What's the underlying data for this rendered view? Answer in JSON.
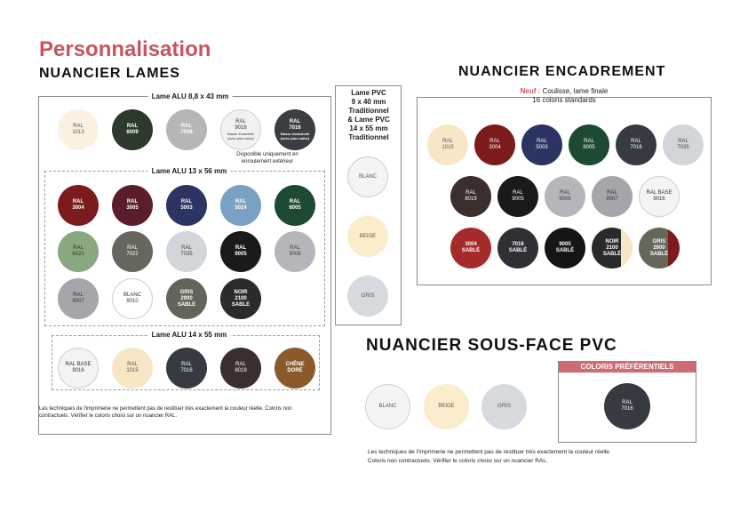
{
  "title": "Personnalisation",
  "lames": {
    "heading": "NUANCIER LAMES",
    "group1": {
      "label": "Lame ALU 8,8 x 43 mm",
      "swatches": [
        {
          "l1": "RAL",
          "l2": "1013",
          "bg": "#fbf1e0",
          "fg": "#555",
          "b": false
        },
        {
          "l1": "RAL",
          "l2": "6009",
          "bg": "#2c3a2b",
          "fg": "#fff",
          "b": true
        },
        {
          "l1": "RAL",
          "l2": "7038",
          "bg": "#b5b7b5",
          "fg": "#fff",
          "b": true
        },
        {
          "l1": "RAL",
          "l2": "9016",
          "l3": "Basse émissivité (avec plus value)",
          "bg": "#f1f1f1",
          "fg": "#333",
          "b": false
        },
        {
          "l1": "RAL",
          "l2": "7016",
          "l3": "Basse émissivité (avec plus value)",
          "bg": "#3a3e43",
          "fg": "#fff",
          "b": true
        }
      ],
      "note": "Disponible uniquement en enroulement extérieur"
    },
    "group2": {
      "label": "Lame ALU 13 x 56 mm",
      "swatches": [
        {
          "l1": "RAL",
          "l2": "3004",
          "bg": "#7b1b1e",
          "fg": "#fff",
          "b": true
        },
        {
          "l1": "RAL",
          "l2": "3005",
          "bg": "#5b1d2a",
          "fg": "#fff",
          "b": true
        },
        {
          "l1": "RAL",
          "l2": "5003",
          "bg": "#2b3463",
          "fg": "#fff",
          "b": true
        },
        {
          "l1": "RAL",
          "l2": "5024",
          "bg": "#7aa1c3",
          "fg": "#fff",
          "b": true
        },
        {
          "l1": "RAL",
          "l2": "6005",
          "bg": "#1d4a33",
          "fg": "#fff",
          "b": true
        },
        {
          "l1": "RAL",
          "l2": "6021",
          "bg": "#8aa880",
          "fg": "#333",
          "b": false
        },
        {
          "l1": "RAL",
          "l2": "7022",
          "bg": "#66665f",
          "fg": "#fff",
          "b": false
        },
        {
          "l1": "RAL",
          "l2": "7035",
          "bg": "#d2d6da",
          "fg": "#444",
          "b": false
        },
        {
          "l1": "RAL",
          "l2": "9005",
          "bg": "#1a1a1a",
          "fg": "#fff",
          "b": true
        },
        {
          "l1": "RAL",
          "l2": "9006",
          "bg": "#b4b6bb",
          "fg": "#444",
          "b": false
        },
        {
          "l1": "RAL",
          "l2": "9007",
          "bg": "#a5a6ab",
          "fg": "#333",
          "b": false
        },
        {
          "l1": "BLANC",
          "l2": "9010",
          "bg": "#ffffff",
          "fg": "#333",
          "b": false
        },
        {
          "l1": "GRIS",
          "l2": "2900",
          "l3": "SABLE",
          "bg": "#64655a",
          "fg": "#fff",
          "b": true
        },
        {
          "l1": "NOIR",
          "l2": "2100",
          "l3": "SABLE",
          "bg": "#2b2b2b",
          "fg": "#fff",
          "b": true
        }
      ]
    },
    "group3": {
      "label": "Lame ALU 14 x 55 mm",
      "swatches": [
        {
          "l1": "RAL BASE",
          "l2": "9016",
          "bg": "#f3f3f3",
          "fg": "#333",
          "b": false
        },
        {
          "l1": "RAL",
          "l2": "1015",
          "bg": "#f6e6c6",
          "fg": "#555",
          "b": false
        },
        {
          "l1": "RAL",
          "l2": "7016",
          "bg": "#363b41",
          "fg": "#fff",
          "b": false
        },
        {
          "l1": "RAL",
          "l2": "8019",
          "bg": "#3a2f2c",
          "fg": "#fff",
          "b": false
        },
        {
          "l1": "CHÊNE",
          "l2": "DORÉ",
          "bg": "#8a5a2b",
          "fg": "#fff",
          "b": true
        }
      ]
    },
    "disclaimer": "Les techniques de l'imprimerie ne permettent pas de restituer très exactement la couleur réelle. Coloris non contractuels. Vérifier le coloris choisi sur un nuancier RAL."
  },
  "pvc": {
    "lines": [
      "Lame PVC",
      "9 x 40 mm",
      "Traditionnel",
      "& Lame PVC",
      "14 x 55 mm",
      "Traditionnel"
    ],
    "swatches": [
      {
        "l1": "BLANC",
        "bg": "#f4f4f4",
        "fg": "#555"
      },
      {
        "l1": "BEIGE",
        "bg": "#fbeccb",
        "fg": "#555"
      },
      {
        "l1": "GRIS",
        "bg": "#d6dade",
        "fg": "#555"
      }
    ]
  },
  "encadrement": {
    "heading": "NUANCIER ENCADREMENT",
    "neuf": "Neuf :",
    "neuf_text": " Coulisse, lame finale",
    "subtitle": "16 coloris standards",
    "swatches": [
      {
        "l1": "RAL",
        "l2": "1015",
        "bg": "#f8e7c6",
        "fg": "#555",
        "b": false
      },
      {
        "l1": "RAL",
        "l2": "3004",
        "bg": "#7b1b1e",
        "fg": "#fff",
        "b": false
      },
      {
        "l1": "RAL",
        "l2": "5003",
        "bg": "#2b3463",
        "fg": "#fff",
        "b": false
      },
      {
        "l1": "RAL",
        "l2": "6005",
        "bg": "#1d4a33",
        "fg": "#fff",
        "b": false
      },
      {
        "l1": "RAL",
        "l2": "7016",
        "bg": "#363b41",
        "fg": "#fff",
        "b": false
      },
      {
        "l1": "RAL",
        "l2": "7035",
        "bg": "#d2d6da",
        "fg": "#444",
        "b": false
      },
      {
        "l1": "RAL",
        "l2": "8019",
        "bg": "#3a2f2c",
        "fg": "#fff",
        "b": false
      },
      {
        "l1": "RAL",
        "l2": "9005",
        "bg": "#1a1a1a",
        "fg": "#fff",
        "b": false
      },
      {
        "l1": "RAL",
        "l2": "9006",
        "bg": "#b4b6bb",
        "fg": "#333",
        "b": false
      },
      {
        "l1": "RAL",
        "l2": "9007",
        "bg": "#a5a6ab",
        "fg": "#333",
        "b": false
      },
      {
        "l1": "RAL BASE",
        "l2": "9016",
        "bg": "#f4f4f4",
        "fg": "#333",
        "b": false
      },
      {
        "l1": "3004",
        "l2": "SABLÉ",
        "bg": "#a52a2a",
        "fg": "#fff",
        "b": true
      },
      {
        "l1": "7016",
        "l2": "SABLÉ",
        "bg": "#2e3035",
        "fg": "#fff",
        "b": true
      },
      {
        "l1": "9005",
        "l2": "SABLÉ",
        "bg": "#151515",
        "fg": "#fff",
        "b": true
      },
      {
        "l1": "NOIR",
        "l2": "2100",
        "l3": "SABLÉ",
        "bg": "#2a2a2a",
        "fg": "#fff",
        "b": true,
        "accent": "#f8e7c6"
      },
      {
        "l1": "GRIS",
        "l2": "2900",
        "l3": "SABLÉ",
        "bg": "#66665a",
        "fg": "#fff",
        "b": true,
        "accent": "#7b1b1e"
      }
    ]
  },
  "sousface": {
    "heading": "NUANCIER SOUS-FACE PVC",
    "swatches": [
      {
        "l1": "BLANC",
        "bg": "#f4f4f4",
        "fg": "#555"
      },
      {
        "l1": "BEIGE",
        "bg": "#fbeccb",
        "fg": "#555"
      },
      {
        "l1": "GRIS",
        "bg": "#d6dade",
        "fg": "#555"
      }
    ],
    "pref_title": "COLORIS PRÉFÉRENTIELS",
    "pref_swatch": {
      "l1": "RAL",
      "l2": "7016",
      "bg": "#363b41",
      "fg": "#fff"
    },
    "disclaimer1": "Les techniques de l'imprimerie ne permettent pas de restituer très exactement la couleur réelle.",
    "disclaimer2": "Coloris non contractuels. Vérifier le coloris choisi sur un nuancier RAL."
  }
}
